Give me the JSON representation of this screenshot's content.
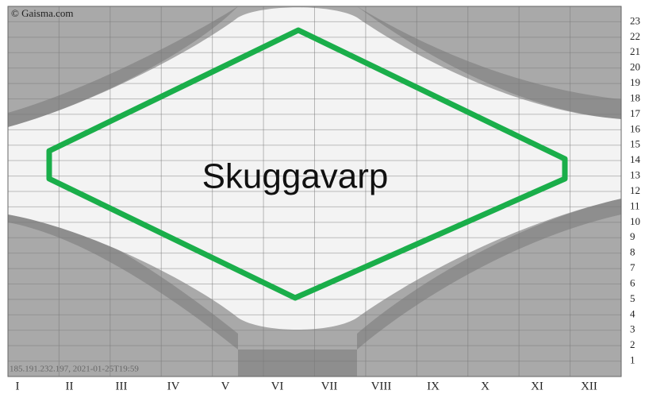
{
  "header": {
    "copyright": "© Gaisma.com",
    "label": "Skuggavarp",
    "footer": "185.191.232.197, 2021-01-25T19:59"
  },
  "chart_data": {
    "type": "sunchart",
    "categories": [
      "I",
      "II",
      "III",
      "IV",
      "V",
      "VI",
      "VII",
      "VIII",
      "IX",
      "X",
      "XI",
      "XII"
    ],
    "ylim": [
      0,
      24
    ],
    "yticks": [
      1,
      2,
      3,
      4,
      5,
      6,
      7,
      8,
      9,
      10,
      11,
      12,
      13,
      14,
      15,
      16,
      17,
      18,
      19,
      20,
      21,
      22,
      23
    ],
    "grid": true
  }
}
